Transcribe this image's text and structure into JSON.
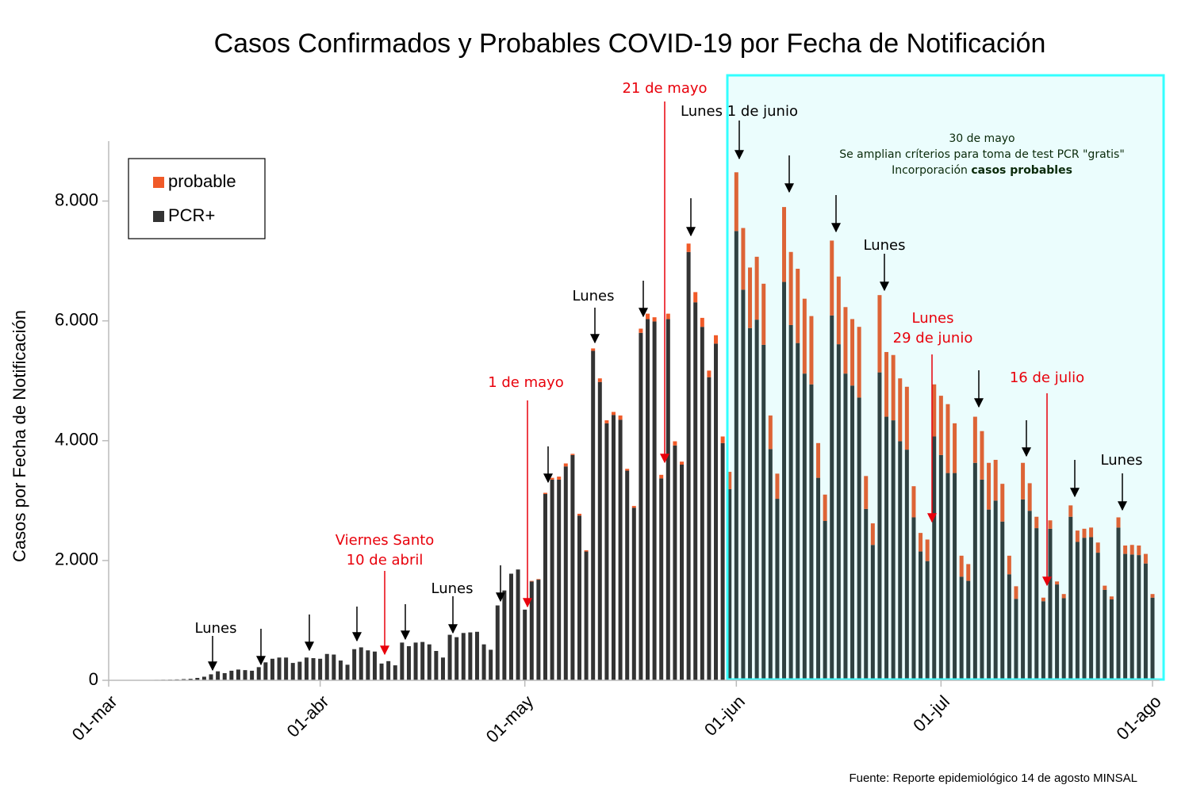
{
  "chart_data": {
    "type": "bar",
    "stacked": true,
    "title": "Casos Confirmados y Probables COVID-19 por Fecha de Notificación",
    "y_label": "Casos por Fecha de Notificación",
    "source": "Fuente: Reporte epidemiológico 14 de agosto  MINSAL",
    "ylim": [
      0,
      9000
    ],
    "yticks": [
      0,
      {
        "value": 2000,
        "label": "2.000"
      },
      {
        "value": 4000,
        "label": "4.000"
      },
      {
        "value": 6000,
        "label": "6.000"
      },
      {
        "value": 8000,
        "label": "8.000"
      }
    ],
    "legend": "upper left",
    "categories": [
      "01-mar",
      null,
      null,
      null,
      null,
      null,
      null,
      null,
      null,
      null,
      null,
      null,
      null,
      null,
      null,
      null,
      null,
      null,
      null,
      null,
      null,
      null,
      null,
      null,
      null,
      null,
      null,
      null,
      null,
      null,
      null,
      "01-abr",
      null,
      null,
      null,
      null,
      null,
      null,
      null,
      null,
      null,
      null,
      null,
      null,
      null,
      null,
      null,
      null,
      null,
      null,
      null,
      null,
      null,
      null,
      null,
      null,
      null,
      null,
      null,
      null,
      null,
      "01-may",
      null,
      null,
      null,
      null,
      null,
      null,
      null,
      null,
      null,
      null,
      null,
      null,
      null,
      null,
      null,
      null,
      null,
      null,
      null,
      null,
      null,
      null,
      null,
      null,
      null,
      null,
      null,
      null,
      null,
      null,
      "01-jun",
      null,
      null,
      null,
      null,
      null,
      null,
      null,
      null,
      null,
      null,
      null,
      null,
      null,
      null,
      null,
      null,
      null,
      null,
      null,
      null,
      null,
      null,
      null,
      null,
      null,
      null,
      null,
      null,
      null,
      "01-jul",
      null,
      null,
      null,
      null,
      null,
      null,
      null,
      null,
      null,
      null,
      null,
      null,
      null,
      null,
      null,
      null,
      null,
      null,
      null,
      null,
      null,
      null,
      null,
      null,
      null,
      null,
      null,
      null,
      null,
      null,
      "01-ago"
    ],
    "series": [
      {
        "name": "PCR+",
        "color": "#333333",
        "values": [
          0,
          0,
          0,
          1,
          3,
          5,
          6,
          8,
          10,
          12,
          15,
          20,
          25,
          40,
          60,
          100,
          150,
          120,
          160,
          180,
          170,
          160,
          220,
          300,
          360,
          380,
          380,
          290,
          310,
          380,
          370,
          360,
          440,
          430,
          330,
          260,
          520,
          550,
          500,
          480,
          280,
          320,
          250,
          630,
          570,
          630,
          640,
          600,
          490,
          380,
          760,
          720,
          790,
          800,
          810,
          600,
          510,
          1250,
          1500,
          1780,
          1850,
          1180,
          1650,
          1680,
          3110,
          3350,
          3350,
          3570,
          3760,
          2750,
          2150,
          5500,
          4980,
          4290,
          4430,
          4350,
          3500,
          2880,
          5800,
          6030,
          5990,
          3370,
          6030,
          3920,
          3600,
          7150,
          6310,
          5900,
          5060,
          5620,
          3960,
          3190,
          7500,
          6520,
          5880,
          6020,
          5600,
          3860,
          3030,
          6650,
          5930,
          5630,
          5120,
          4940,
          3380,
          2660,
          6090,
          5610,
          5120,
          4920,
          4720,
          2860,
          2260,
          5140,
          4400,
          4340,
          3990,
          3850,
          2720,
          2150,
          1990,
          4070,
          3760,
          3460,
          3460,
          1730,
          1660,
          3630,
          3350,
          2850,
          3000,
          2650,
          1770,
          1360,
          3020,
          2830,
          2540,
          1320,
          2530,
          1600,
          1370,
          2730,
          2310,
          2380,
          2390,
          2130,
          1510,
          1350,
          2550,
          2110,
          2100,
          2090,
          1950,
          1380
        ]
      },
      {
        "name": "probable",
        "color": "#f05a28",
        "values": [
          0,
          0,
          0,
          0,
          0,
          0,
          0,
          0,
          0,
          0,
          0,
          0,
          0,
          0,
          0,
          0,
          0,
          0,
          0,
          0,
          0,
          0,
          0,
          0,
          0,
          0,
          0,
          0,
          0,
          0,
          0,
          0,
          0,
          0,
          0,
          0,
          0,
          0,
          0,
          0,
          0,
          0,
          0,
          0,
          0,
          0,
          0,
          0,
          0,
          0,
          0,
          0,
          0,
          0,
          0,
          0,
          0,
          0,
          0,
          0,
          0,
          0,
          10,
          10,
          20,
          30,
          50,
          50,
          20,
          30,
          20,
          40,
          60,
          50,
          50,
          70,
          30,
          30,
          70,
          90,
          70,
          60,
          90,
          70,
          50,
          140,
          170,
          150,
          110,
          140,
          110,
          290,
          980,
          1030,
          1010,
          1050,
          1020,
          560,
          420,
          1250,
          1220,
          1240,
          1250,
          1140,
          580,
          440,
          1250,
          1130,
          1110,
          1110,
          1180,
          550,
          360,
          1290,
          1080,
          1090,
          1050,
          1050,
          520,
          310,
          360,
          870,
          990,
          1150,
          830,
          350,
          280,
          770,
          810,
          780,
          680,
          630,
          310,
          210,
          610,
          460,
          190,
          60,
          140,
          50,
          70,
          190,
          190,
          150,
          160,
          170,
          70,
          50,
          170,
          140,
          160,
          160,
          160,
          60
        ]
      }
    ],
    "annotations": [
      {
        "lines": [
          "Lunes"
        ],
        "color": "#000000"
      },
      {
        "lines": [
          "Viernes Santo",
          "10 de abril"
        ],
        "color": "#e8000b"
      },
      {
        "lines": [
          "Lunes"
        ],
        "color": "#000000"
      },
      {
        "lines": [
          "1 de mayo"
        ],
        "color": "#e8000b"
      },
      {
        "lines": [
          "Lunes"
        ],
        "color": "#000000"
      },
      {
        "lines": [
          "21 de mayo"
        ],
        "color": "#e8000b"
      },
      {
        "lines": [
          "Lunes 1 de junio"
        ],
        "color": "#000000"
      },
      {
        "lines": [
          "Lunes"
        ],
        "color": "#000000"
      },
      {
        "lines": [
          "Lunes",
          "29 de junio"
        ],
        "color": "#e8000b"
      },
      {
        "lines": [
          "16 de julio"
        ],
        "color": "#e8000b"
      },
      {
        "lines": [
          "Lunes"
        ],
        "color": "#000000"
      }
    ],
    "note": {
      "lines": [
        "30 de mayo",
        "Se amplian críterios para toma de test PCR \"gratis\""
      ],
      "prefix": "Incorporación",
      "emphasis": "casos probables",
      "color": "#0a2a0a"
    }
  }
}
